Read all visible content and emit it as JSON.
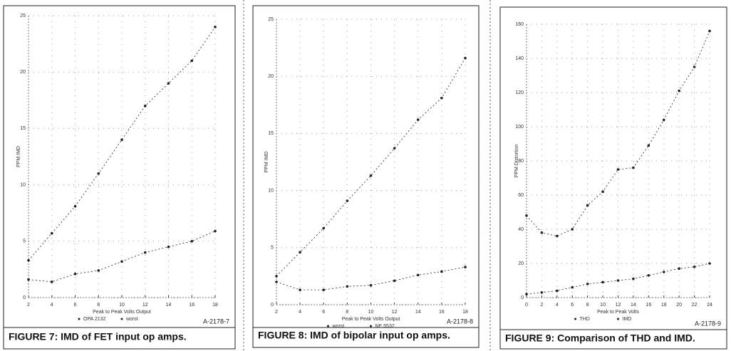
{
  "chart_data": [
    {
      "type": "line",
      "ylabel": "PPM IMD",
      "xlabel": "Peak to Peak Volts Output",
      "code": "A-2178-7",
      "caption": "FIGURE 7: IMD of FET input op amps.",
      "x": [
        2,
        4,
        6,
        8,
        10,
        12,
        14,
        16,
        18
      ],
      "xlim": [
        2,
        18
      ],
      "xticks": [
        2,
        4,
        6,
        8,
        10,
        12,
        14,
        16,
        18
      ],
      "ylim": [
        0,
        25
      ],
      "yticks": [
        0,
        5,
        10,
        15,
        20,
        25
      ],
      "grid": true,
      "series": [
        {
          "name": "OPA 2132",
          "color": "#222222",
          "values": [
            1.6,
            1.4,
            2.1,
            2.4,
            3.2,
            4.0,
            4.5,
            5.0,
            5.9
          ]
        },
        {
          "name": "worst",
          "color": "#222222",
          "values": [
            3.3,
            5.7,
            8.1,
            11,
            14,
            17,
            19,
            21,
            24
          ]
        }
      ]
    },
    {
      "type": "line",
      "ylabel": "PPM IMD",
      "xlabel": "Peak to Peak Volts Output",
      "code": "A-2178-8",
      "caption": "FIGURE 8: IMD of bipolar input op amps.",
      "x": [
        2,
        4,
        6,
        8,
        10,
        12,
        14,
        16,
        18
      ],
      "xlim": [
        2,
        18
      ],
      "xticks": [
        2,
        4,
        6,
        8,
        10,
        12,
        14,
        16,
        18
      ],
      "ylim": [
        0,
        25
      ],
      "yticks": [
        0,
        5,
        10,
        15,
        20,
        25
      ],
      "grid": true,
      "series": [
        {
          "name": "worst",
          "color": "#222222",
          "values": [
            2.5,
            4.6,
            6.7,
            9.1,
            11.3,
            13.7,
            16.2,
            18.1,
            21.6
          ]
        },
        {
          "name": "NE 5532",
          "color": "#222222",
          "values": [
            2.0,
            1.3,
            1.3,
            1.6,
            1.7,
            2.1,
            2.6,
            2.9,
            3.3
          ]
        }
      ]
    },
    {
      "type": "line",
      "ylabel": "PPM Distortion",
      "xlabel": "Peak to Peak Volts",
      "code": "A-2178-9",
      "caption": "FIGURE 9: Comparison of THD and IMD.",
      "x": [
        0,
        2,
        4,
        6,
        8,
        10,
        12,
        14,
        16,
        18,
        20,
        22,
        24
      ],
      "xlim": [
        0,
        24
      ],
      "xticks": [
        0,
        2,
        4,
        6,
        8,
        10,
        12,
        14,
        16,
        18,
        20,
        22,
        24
      ],
      "ylim": [
        0,
        160
      ],
      "yticks": [
        0,
        20,
        40,
        60,
        80,
        100,
        120,
        140,
        160
      ],
      "grid": true,
      "series": [
        {
          "name": "THD",
          "color": "#222222",
          "values": [
            48,
            38,
            36,
            40,
            54,
            62,
            75,
            76,
            89,
            104,
            121,
            135,
            156
          ]
        },
        {
          "name": "IMD",
          "color": "#222222",
          "values": [
            2,
            3,
            4,
            6,
            8,
            9,
            10,
            11,
            13,
            15,
            17,
            18,
            20
          ]
        }
      ]
    }
  ]
}
